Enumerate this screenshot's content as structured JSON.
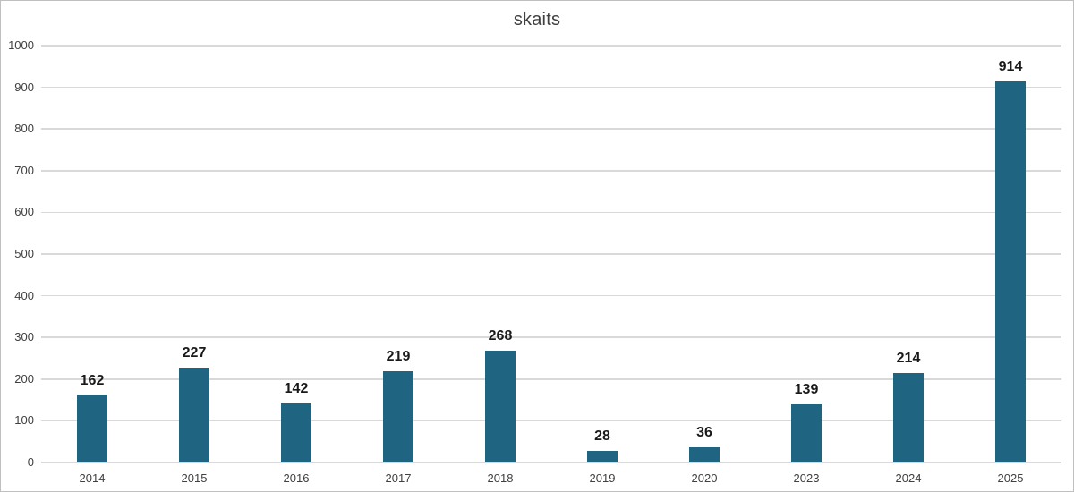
{
  "chart_data": {
    "type": "bar",
    "title": "skaits",
    "categories": [
      "2014",
      "2015",
      "2016",
      "2017",
      "2018",
      "2019",
      "2020",
      "2023",
      "2024",
      "2025"
    ],
    "values": [
      162,
      227,
      142,
      219,
      268,
      28,
      36,
      139,
      214,
      914
    ],
    "xlabel": "",
    "ylabel": "",
    "ylim": [
      0,
      1000
    ],
    "ytick_interval": 100,
    "yticks": [
      0,
      100,
      200,
      300,
      400,
      500,
      600,
      700,
      800,
      900,
      1000
    ],
    "grid": true,
    "legend": "none",
    "colors": {
      "bar_fill": "#1f6480",
      "gridline": "#d9d9d9",
      "axis_text": "#404040",
      "data_label": "#1a1a1a",
      "title_text": "#404040",
      "frame_border": "#bfbfbf",
      "background": "#ffffff"
    }
  }
}
